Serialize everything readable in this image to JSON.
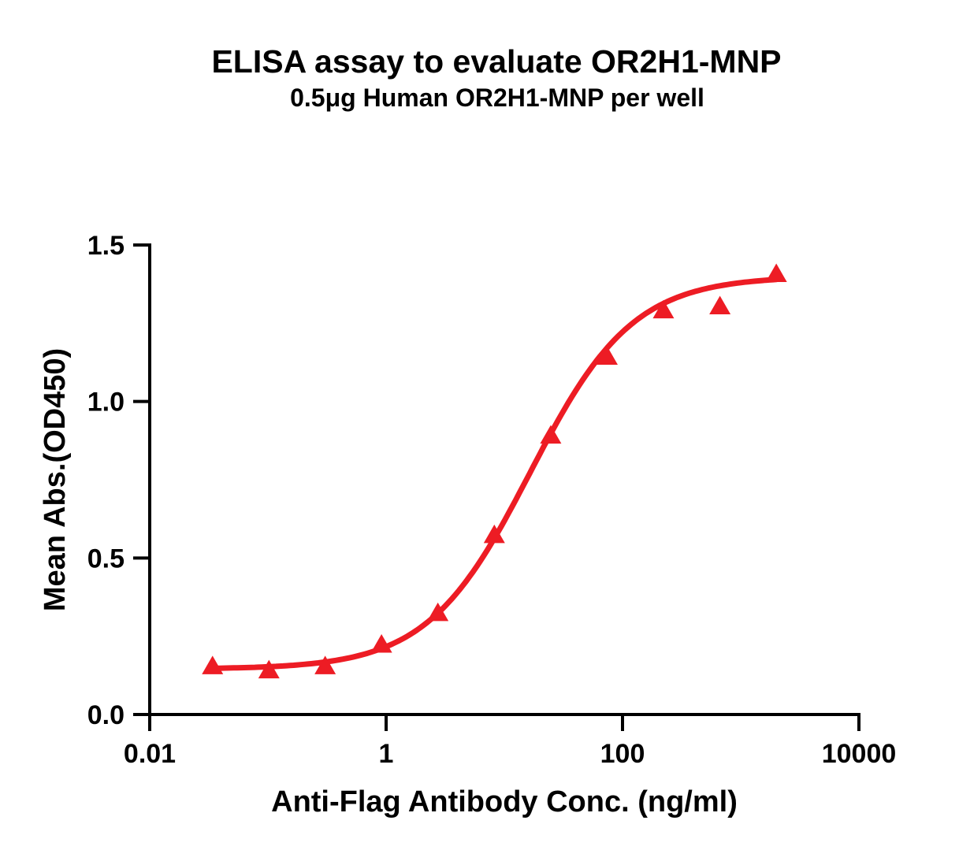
{
  "figure": {
    "background_color": "#FFFFFF",
    "text_color": "#000000",
    "axis_color": "#000000",
    "accent_color": "#ED1C24"
  },
  "chart_data": {
    "type": "scatter",
    "title": "ELISA assay to evaluate OR2H1-MNP",
    "subtitle": "0.5μg Human OR2H1-MNP per well",
    "xlabel": "Anti-Flag Antibody Conc. (ng/ml)",
    "ylabel": "Mean Abs.(OD450)",
    "x_scale": "log10",
    "xlim": [
      0.01,
      10000
    ],
    "ylim": [
      0.0,
      1.5
    ],
    "grid": false,
    "legend": "none",
    "x_ticks": [
      {
        "v": 0.01,
        "label": "0.01"
      },
      {
        "v": 1,
        "label": "1"
      },
      {
        "v": 100,
        "label": "100"
      },
      {
        "v": 10000,
        "label": "10000"
      }
    ],
    "y_ticks": [
      {
        "v": 0.0,
        "label": "0.0"
      },
      {
        "v": 0.5,
        "label": "0.5"
      },
      {
        "v": 1.0,
        "label": "1.0"
      },
      {
        "v": 1.5,
        "label": "1.5"
      }
    ],
    "series": [
      {
        "marker": "filled-triangle-up",
        "color": "#ED1C24",
        "points": [
          {
            "x": 0.034,
            "y": 0.155
          },
          {
            "x": 0.102,
            "y": 0.142
          },
          {
            "x": 0.305,
            "y": 0.155
          },
          {
            "x": 0.914,
            "y": 0.224
          },
          {
            "x": 2.74,
            "y": 0.325
          },
          {
            "x": 8.23,
            "y": 0.574
          },
          {
            "x": 24.7,
            "y": 0.892
          },
          {
            "x": 74.1,
            "y": 1.144
          },
          {
            "x": 222,
            "y": 1.292
          },
          {
            "x": 667,
            "y": 1.305
          },
          {
            "x": 2000,
            "y": 1.408
          }
        ]
      }
    ],
    "fit_curve": {
      "model": "4PL-sigmoid",
      "bottom": 0.145,
      "top": 1.4,
      "ec50": 16.5,
      "hill": 1.0,
      "x_start": 0.034,
      "x_end": 2000,
      "color": "#ED1C24"
    }
  }
}
